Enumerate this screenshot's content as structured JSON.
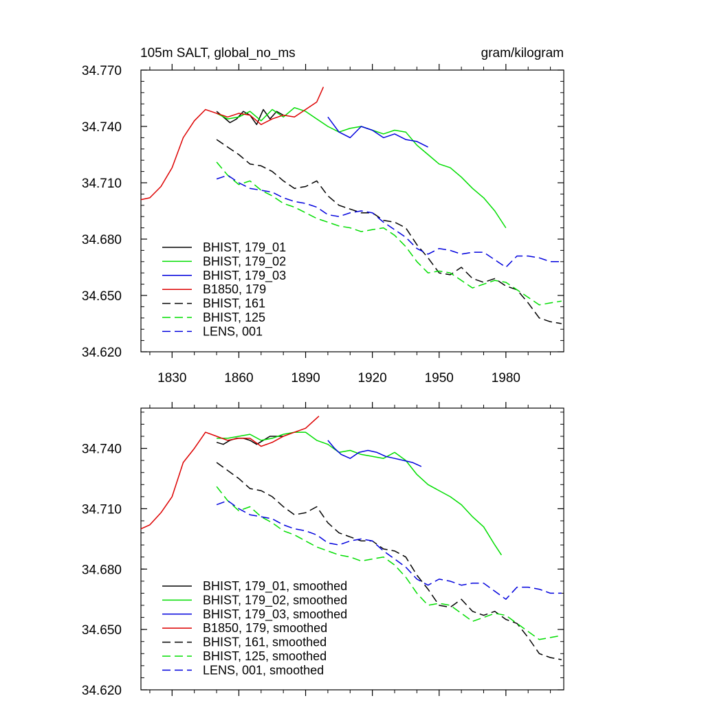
{
  "chart_data": [
    {
      "type": "line",
      "title": "105m SALT, global_no_ms",
      "units": "gram/kilogram",
      "xlim": [
        1816,
        2006
      ],
      "ylim": [
        34.62,
        34.77
      ],
      "xticks": [
        1830,
        1860,
        1890,
        1920,
        1950,
        1980
      ],
      "xtick_labels": [
        "1830",
        "1860",
        "1890",
        "1920",
        "1950",
        "1980"
      ],
      "yticks": [
        34.62,
        34.65,
        34.68,
        34.71,
        34.74,
        34.77
      ],
      "ytick_labels": [
        "34.620",
        "34.650",
        "34.680",
        "34.710",
        "34.740",
        "34.770"
      ],
      "legend_position": "bottom-left",
      "series": [
        {
          "name": "BHIST, 179_01",
          "color": "#000000",
          "dash": "solid",
          "x": [
            1850,
            1853,
            1856,
            1859,
            1862,
            1865,
            1868,
            1871,
            1874,
            1877,
            1880
          ],
          "y": [
            34.748,
            34.745,
            34.742,
            34.744,
            34.748,
            34.746,
            34.741,
            34.749,
            34.744,
            34.748,
            34.746
          ]
        },
        {
          "name": "BHIST, 179_02",
          "color": "#00dd00",
          "dash": "solid",
          "x": [
            1850,
            1855,
            1860,
            1865,
            1870,
            1875,
            1880,
            1885,
            1890,
            1895,
            1900,
            1905,
            1910,
            1915,
            1920,
            1925,
            1930,
            1935,
            1940,
            1945,
            1950,
            1955,
            1960,
            1965,
            1970,
            1975,
            1980
          ],
          "y": [
            34.747,
            34.744,
            34.745,
            34.748,
            34.743,
            34.749,
            34.745,
            34.75,
            34.748,
            34.744,
            34.74,
            34.737,
            34.739,
            34.74,
            34.738,
            34.736,
            34.738,
            34.737,
            34.73,
            34.725,
            34.72,
            34.718,
            34.713,
            34.707,
            34.702,
            34.695,
            34.686
          ]
        },
        {
          "name": "BHIST, 179_03",
          "color": "#0000dd",
          "dash": "solid",
          "x": [
            1900,
            1905,
            1910,
            1915,
            1920,
            1925,
            1930,
            1935,
            1940,
            1945
          ],
          "y": [
            34.745,
            34.737,
            34.734,
            34.74,
            34.738,
            34.734,
            34.736,
            34.733,
            34.732,
            34.729
          ]
        },
        {
          "name": "B1850, 179",
          "color": "#dd0000",
          "dash": "solid",
          "x": [
            1816,
            1820,
            1825,
            1830,
            1835,
            1840,
            1845,
            1850,
            1855,
            1860,
            1865,
            1870,
            1875,
            1880,
            1885,
            1890,
            1895,
            1898
          ],
          "y": [
            34.701,
            34.702,
            34.708,
            34.718,
            34.734,
            34.743,
            34.749,
            34.747,
            34.745,
            34.747,
            34.746,
            34.741,
            34.744,
            34.746,
            34.745,
            34.749,
            34.753,
            34.761
          ]
        },
        {
          "name": "BHIST, 161",
          "color": "#000000",
          "dash": "dashed",
          "x": [
            1850,
            1855,
            1860,
            1865,
            1870,
            1875,
            1880,
            1885,
            1890,
            1895,
            1900,
            1905,
            1910,
            1915,
            1920,
            1925,
            1930,
            1935,
            1940,
            1945,
            1950,
            1955,
            1960,
            1965,
            1970,
            1975,
            1980,
            1985,
            1990,
            1995,
            2000,
            2005
          ],
          "y": [
            34.733,
            34.729,
            34.725,
            34.72,
            34.719,
            34.716,
            34.711,
            34.707,
            34.708,
            34.711,
            34.703,
            34.698,
            34.696,
            34.694,
            34.694,
            34.69,
            34.689,
            34.686,
            34.677,
            34.67,
            34.662,
            34.661,
            34.665,
            34.659,
            34.657,
            34.659,
            34.655,
            34.653,
            34.646,
            34.638,
            34.636,
            34.635
          ]
        },
        {
          "name": "BHIST, 125",
          "color": "#00dd00",
          "dash": "dashed",
          "x": [
            1850,
            1855,
            1860,
            1865,
            1870,
            1875,
            1880,
            1885,
            1890,
            1895,
            1900,
            1905,
            1910,
            1915,
            1920,
            1925,
            1930,
            1935,
            1940,
            1945,
            1950,
            1955,
            1960,
            1965,
            1970,
            1975,
            1980,
            1985,
            1990,
            1995,
            2000,
            2005
          ],
          "y": [
            34.721,
            34.714,
            34.709,
            34.711,
            34.706,
            34.703,
            34.699,
            34.697,
            34.694,
            34.691,
            34.689,
            34.687,
            34.686,
            34.684,
            34.685,
            34.686,
            34.682,
            34.676,
            34.668,
            34.662,
            34.663,
            34.662,
            34.658,
            34.654,
            34.656,
            34.658,
            34.657,
            34.653,
            34.649,
            34.645,
            34.646,
            34.647
          ]
        },
        {
          "name": "LENS, 001",
          "color": "#0000dd",
          "dash": "dashed",
          "x": [
            1850,
            1855,
            1860,
            1865,
            1870,
            1875,
            1880,
            1885,
            1890,
            1895,
            1900,
            1905,
            1910,
            1915,
            1920,
            1925,
            1930,
            1935,
            1940,
            1945,
            1950,
            1955,
            1960,
            1965,
            1970,
            1975,
            1980,
            1985,
            1990,
            1995,
            2000,
            2005
          ],
          "y": [
            34.712,
            34.714,
            34.71,
            34.707,
            34.706,
            34.705,
            34.702,
            34.7,
            34.699,
            34.697,
            34.693,
            34.692,
            34.694,
            34.695,
            34.694,
            34.689,
            34.685,
            34.681,
            34.675,
            34.672,
            34.675,
            34.674,
            34.672,
            34.673,
            34.673,
            34.669,
            34.665,
            34.671,
            34.671,
            34.67,
            34.668,
            34.668
          ]
        }
      ]
    },
    {
      "type": "line",
      "title": "",
      "xlim": [
        1816,
        2006
      ],
      "ylim": [
        34.62,
        34.76
      ],
      "xticks": [
        1830,
        1860,
        1890,
        1920,
        1950,
        1980
      ],
      "xtick_labels": [
        "",
        "",
        "",
        "",
        "",
        ""
      ],
      "yticks": [
        34.62,
        34.65,
        34.68,
        34.71,
        34.74
      ],
      "ytick_labels": [
        "34.620",
        "34.650",
        "34.680",
        "34.710",
        "34.740"
      ],
      "legend_position": "bottom-left",
      "series": [
        {
          "name": "BHIST, 179_01, smoothed",
          "color": "#000000",
          "dash": "solid",
          "x": [
            1850,
            1853,
            1856,
            1859,
            1862,
            1865,
            1868,
            1871,
            1874,
            1877,
            1880
          ],
          "y": [
            34.743,
            34.742,
            34.744,
            34.745,
            34.745,
            34.744,
            34.742,
            34.744,
            34.746,
            34.746,
            34.746
          ]
        },
        {
          "name": "BHIST, 179_02, smoothed",
          "color": "#00dd00",
          "dash": "solid",
          "x": [
            1850,
            1855,
            1860,
            1865,
            1870,
            1875,
            1880,
            1885,
            1890,
            1895,
            1900,
            1905,
            1910,
            1915,
            1920,
            1925,
            1930,
            1935,
            1940,
            1945,
            1950,
            1955,
            1960,
            1965,
            1970,
            1975,
            1978
          ],
          "y": [
            34.745,
            34.745,
            34.746,
            34.747,
            34.744,
            34.745,
            34.747,
            34.748,
            34.748,
            34.744,
            34.742,
            34.738,
            34.739,
            34.737,
            34.736,
            34.735,
            34.738,
            34.734,
            34.727,
            34.722,
            34.719,
            34.716,
            34.712,
            34.706,
            34.701,
            34.692,
            34.687
          ]
        },
        {
          "name": "BHIST, 179_03, smoothed",
          "color": "#0000dd",
          "dash": "solid",
          "x": [
            1900,
            1903,
            1906,
            1910,
            1914,
            1918,
            1922,
            1926,
            1930,
            1934,
            1938,
            1942
          ],
          "y": [
            34.744,
            34.74,
            34.737,
            34.735,
            34.738,
            34.739,
            34.738,
            34.736,
            34.735,
            34.734,
            34.733,
            34.731
          ]
        },
        {
          "name": "B1850, 179, smoothed",
          "color": "#dd0000",
          "dash": "solid",
          "x": [
            1816,
            1820,
            1825,
            1830,
            1835,
            1840,
            1845,
            1850,
            1855,
            1860,
            1865,
            1870,
            1875,
            1880,
            1885,
            1890,
            1895,
            1896
          ],
          "y": [
            34.7,
            34.702,
            34.708,
            34.716,
            34.733,
            34.74,
            34.748,
            34.746,
            34.744,
            34.745,
            34.745,
            34.741,
            34.743,
            34.746,
            34.748,
            34.75,
            34.755,
            34.756
          ]
        },
        {
          "name": "BHIST, 161, smoothed",
          "color": "#000000",
          "dash": "dashed",
          "x": [
            1850,
            1855,
            1860,
            1865,
            1870,
            1875,
            1880,
            1885,
            1890,
            1895,
            1900,
            1905,
            1910,
            1915,
            1920,
            1925,
            1930,
            1935,
            1940,
            1945,
            1950,
            1955,
            1960,
            1965,
            1970,
            1975,
            1980,
            1985,
            1990,
            1995,
            2000,
            2005
          ],
          "y": [
            34.733,
            34.729,
            34.725,
            34.72,
            34.719,
            34.716,
            34.711,
            34.707,
            34.708,
            34.711,
            34.703,
            34.698,
            34.696,
            34.694,
            34.694,
            34.69,
            34.689,
            34.686,
            34.677,
            34.67,
            34.662,
            34.661,
            34.665,
            34.659,
            34.657,
            34.659,
            34.655,
            34.653,
            34.646,
            34.638,
            34.636,
            34.635
          ]
        },
        {
          "name": "BHIST, 125, smoothed",
          "color": "#00dd00",
          "dash": "dashed",
          "x": [
            1850,
            1855,
            1860,
            1865,
            1870,
            1875,
            1880,
            1885,
            1890,
            1895,
            1900,
            1905,
            1910,
            1915,
            1920,
            1925,
            1930,
            1935,
            1940,
            1945,
            1950,
            1955,
            1960,
            1965,
            1970,
            1975,
            1980,
            1985,
            1990,
            1995,
            2000,
            2005
          ],
          "y": [
            34.721,
            34.714,
            34.709,
            34.711,
            34.706,
            34.703,
            34.699,
            34.697,
            34.694,
            34.691,
            34.689,
            34.687,
            34.686,
            34.684,
            34.685,
            34.686,
            34.682,
            34.676,
            34.668,
            34.662,
            34.663,
            34.662,
            34.658,
            34.654,
            34.656,
            34.658,
            34.657,
            34.653,
            34.649,
            34.645,
            34.646,
            34.647
          ]
        },
        {
          "name": "LENS, 001, smoothed",
          "color": "#0000dd",
          "dash": "dashed",
          "x": [
            1850,
            1855,
            1860,
            1865,
            1870,
            1875,
            1880,
            1885,
            1890,
            1895,
            1900,
            1905,
            1910,
            1915,
            1920,
            1925,
            1930,
            1935,
            1940,
            1945,
            1950,
            1955,
            1960,
            1965,
            1970,
            1975,
            1980,
            1985,
            1990,
            1995,
            2000,
            2005
          ],
          "y": [
            34.712,
            34.714,
            34.71,
            34.707,
            34.706,
            34.705,
            34.702,
            34.7,
            34.699,
            34.697,
            34.693,
            34.692,
            34.694,
            34.695,
            34.694,
            34.689,
            34.685,
            34.681,
            34.675,
            34.672,
            34.675,
            34.674,
            34.672,
            34.673,
            34.673,
            34.669,
            34.665,
            34.671,
            34.671,
            34.67,
            34.668,
            34.668
          ]
        }
      ]
    }
  ]
}
